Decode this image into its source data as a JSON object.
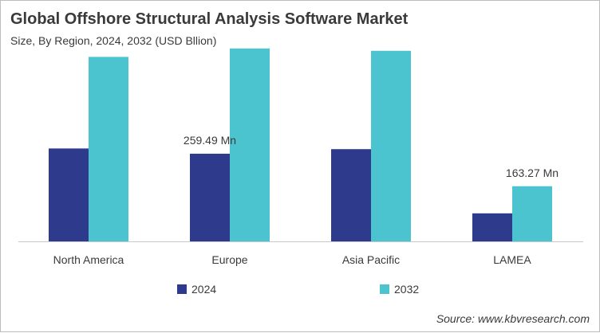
{
  "chart_data": {
    "type": "bar",
    "title": "Global Offshore Structural Analysis Software Market",
    "subtitle": "Size, By Region, 2024, 2032 (USD Bllion)",
    "categories": [
      "North America",
      "Europe",
      "Asia Pacific",
      "LAMEA"
    ],
    "series": [
      {
        "name": "2024",
        "color": "#2e3a8c",
        "values": [
          275,
          259.49,
          273,
          83
        ]
      },
      {
        "name": "2032",
        "color": "#4bc4cf",
        "values": [
          546,
          571,
          564,
          163.27
        ]
      }
    ],
    "data_labels": [
      {
        "series": 0,
        "index": 1,
        "text": "259.49 Mn"
      },
      {
        "series": 1,
        "index": 3,
        "text": "163.27 Mn"
      }
    ],
    "ylim": [
      0,
      580
    ],
    "grid": false,
    "legend": "bottom-center",
    "source": "Source: www.kbvresearch.com"
  }
}
